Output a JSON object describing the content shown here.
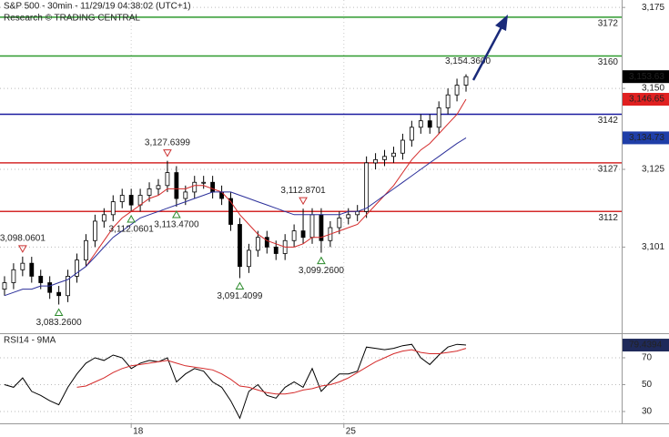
{
  "chart_data": [
    {
      "type": "candlestick",
      "title": "S&P 500 - 30min - 11/29/19 04:38:02 (UTC+1)",
      "subtitle": "Research © TRADING CENTRAL",
      "open": [
        3088,
        3090,
        3094,
        3096,
        3092,
        3090,
        3087,
        3086,
        3092,
        3097,
        3103,
        3109,
        3111,
        3115,
        3117,
        3114,
        3117,
        3119,
        3120,
        3124,
        3116,
        3118,
        3121,
        3121,
        3118,
        3116,
        3108,
        3095,
        3100,
        3104,
        3101,
        3099,
        3103,
        3106,
        3104,
        3111,
        3103,
        3107,
        3110,
        3111,
        3112,
        3127,
        3128,
        3129,
        3130,
        3134,
        3138,
        3140,
        3138,
        3144,
        3148,
        3151
      ],
      "high": [
        3092,
        3096,
        3098.0601,
        3098,
        3094,
        3092,
        3089,
        3094,
        3099,
        3105,
        3111,
        3113,
        3117,
        3119,
        3119,
        3119,
        3121,
        3122,
        3127.6399,
        3126,
        3120,
        3123,
        3123,
        3123,
        3120,
        3118,
        3110,
        3102,
        3106,
        3106,
        3103,
        3105,
        3108,
        3112.8701,
        3113,
        3113,
        3109,
        3112,
        3113,
        3114,
        3129,
        3130,
        3131,
        3132,
        3136,
        3140,
        3142,
        3142,
        3146,
        3150,
        3153,
        3154.36
      ],
      "low": [
        3086,
        3088,
        3092,
        3090,
        3088,
        3085,
        3083.26,
        3084,
        3090,
        3095,
        3101,
        3107,
        3109,
        3113,
        3112.0601,
        3112,
        3115,
        3117,
        3118,
        3113.47,
        3114,
        3116,
        3119,
        3116,
        3114,
        3106,
        3091.4099,
        3093,
        3098,
        3099,
        3097,
        3097,
        3101,
        3102,
        3102,
        3099.26,
        3101,
        3105,
        3108,
        3109,
        3110,
        3125,
        3126,
        3127,
        3128,
        3132,
        3136,
        3136,
        3136,
        3142,
        3146,
        3149
      ],
      "close": [
        3090,
        3094,
        3096,
        3092,
        3090,
        3087,
        3086,
        3092,
        3097,
        3103,
        3109,
        3111,
        3115,
        3117,
        3114,
        3117,
        3119,
        3120,
        3124,
        3116,
        3118,
        3121,
        3121,
        3118,
        3116,
        3108,
        3095,
        3100,
        3104,
        3101,
        3099,
        3103,
        3106,
        3104,
        3111,
        3103,
        3107,
        3110,
        3111,
        3112,
        3127,
        3128,
        3129,
        3130,
        3134,
        3138,
        3140,
        3138,
        3144,
        3148,
        3151,
        3153.63
      ],
      "series": [
        {
          "color": "#d42a2a",
          "values": [
            null,
            null,
            null,
            null,
            null,
            null,
            null,
            null,
            null,
            3095,
            3099,
            3103,
            3107,
            3110,
            3112,
            3114,
            3116,
            3117,
            3119,
            3119,
            3119,
            3120,
            3120,
            3119,
            3118,
            3115,
            3111,
            3108,
            3105,
            3103,
            3102,
            3101,
            3101,
            3102,
            3104,
            3104,
            3105,
            3106,
            3107,
            3108,
            3111,
            3114,
            3117,
            3120,
            3124,
            3128,
            3131,
            3133,
            3136,
            3139,
            3142,
            3146.65
          ]
        },
        {
          "color": "#2b2f9a",
          "values": [
            3086,
            3087,
            3088,
            3088,
            3089,
            3089,
            3090,
            3091,
            3093,
            3095,
            3098,
            3101,
            3104,
            3106,
            3108,
            3110,
            3111,
            3112,
            3113,
            3114,
            3115,
            3116,
            3117,
            3118,
            3118,
            3118,
            3117,
            3116,
            3115,
            3114,
            3113,
            3112,
            3111,
            3111,
            3111,
            3111,
            3111,
            3111,
            3112,
            3112,
            3113,
            3115,
            3117,
            3119,
            3121,
            3123,
            3125,
            3127,
            3129,
            3131,
            3133,
            3134.73
          ]
        }
      ],
      "levels": [
        {
          "value": 3172,
          "color": "#2e9a2e"
        },
        {
          "value": 3160,
          "color": "#2e9a2e"
        },
        {
          "value": 3142,
          "color": "#1a1aa0"
        },
        {
          "value": 3127,
          "color": "#d42a2a"
        },
        {
          "value": 3112,
          "color": "#d42a2a"
        }
      ],
      "annotations": [
        {
          "index": 2,
          "value": 3098.0601,
          "label": "3,098.0601",
          "side": "high"
        },
        {
          "index": 6,
          "value": 3083.26,
          "label": "3,083.2600",
          "side": "low"
        },
        {
          "index": 14,
          "value": 3112.0601,
          "label": "3,112.0601",
          "side": "low"
        },
        {
          "index": 18,
          "value": 3127.6399,
          "label": "3,127.6399",
          "side": "high"
        },
        {
          "index": 19,
          "value": 3113.47,
          "label": "3,113.4700",
          "side": "low"
        },
        {
          "index": 26,
          "value": 3091.4099,
          "label": "3,091.4099",
          "side": "low"
        },
        {
          "index": 33,
          "value": 3112.8701,
          "label": "3,112.8701",
          "side": "high"
        },
        {
          "index": 35,
          "value": 3099.26,
          "label": "3,099.2600",
          "side": "low"
        },
        {
          "index": 51,
          "value": 3154.36,
          "label": "3,154.3600",
          "side": "label"
        }
      ],
      "price_markers": [
        {
          "value": 3153.63,
          "label": "3,153.63",
          "color": "#000000"
        },
        {
          "value": 3146.65,
          "label": "3,146.65",
          "color": "#e02020"
        },
        {
          "value": 3134.73,
          "label": "3,134.73",
          "color": "#1f3ea8"
        }
      ],
      "xlim": [
        -0.5,
        68.2
      ],
      "ylim": [
        3074.4,
        3177.3
      ],
      "yticks": [
        {
          "value": 3175,
          "label": "3,175"
        },
        {
          "value": 3150,
          "label": "3,150"
        },
        {
          "value": 3125,
          "label": "3,125"
        },
        {
          "value": 3101,
          "label": "3,101"
        }
      ],
      "xticks": [
        {
          "value": 14,
          "label": "18"
        },
        {
          "value": 37.5,
          "label": "25"
        }
      ],
      "grid": true
    },
    {
      "type": "line",
      "title": "RSI14 - 9MA",
      "series": [
        {
          "color": "#000000",
          "values": [
            50,
            48,
            55,
            45,
            42,
            38,
            35,
            48,
            58,
            66,
            70,
            68,
            72,
            70,
            62,
            66,
            68,
            67,
            70,
            52,
            58,
            62,
            60,
            52,
            48,
            38,
            25,
            45,
            50,
            42,
            40,
            48,
            52,
            48,
            62,
            45,
            52,
            58,
            58,
            60,
            78,
            77,
            76,
            77,
            79,
            80,
            70,
            65,
            72,
            78,
            80,
            79.4394
          ]
        },
        {
          "color": "#d42a2a",
          "values": [
            null,
            null,
            null,
            null,
            null,
            null,
            null,
            null,
            48,
            49,
            52,
            55,
            59,
            62,
            64,
            65,
            66,
            67,
            68,
            66,
            64,
            63,
            62,
            61,
            58,
            54,
            49,
            48,
            46,
            44,
            43,
            43,
            44,
            46,
            47,
            49,
            50,
            52,
            55,
            59,
            63,
            67,
            70,
            73,
            75,
            76,
            74,
            73,
            73,
            74,
            75,
            77
          ]
        }
      ],
      "price_markers": [
        {
          "value": 79.4394,
          "label": "79.4394",
          "color": "#1f2a5a"
        }
      ],
      "xlim": [
        -0.5,
        68.2
      ],
      "ylim": [
        21.2,
        87.6
      ],
      "yticks": [
        70,
        50,
        30
      ],
      "grid": true
    }
  ]
}
